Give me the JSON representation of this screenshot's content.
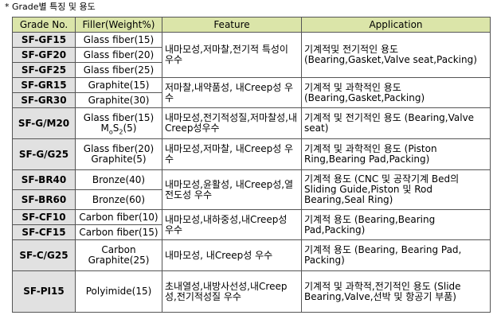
{
  "caption": "* Grade별 특징 및 용도",
  "headers": [
    "Grade No.",
    "Filler(Weight%)",
    "Feature",
    "Application"
  ],
  "groups": [
    {
      "grades": [
        "SF-GF15",
        "SF-GF20",
        "SF-GF25"
      ],
      "fillers": [
        "Glass fiber(15)",
        "Glass fiber(20)",
        "Glass fiber(25)"
      ],
      "feature": "내마모성,저마찰,전기적 특성이 우수",
      "application": "기계적및 전기적인 용도 (Bearing,Gasket,Valve seat,Packing)"
    },
    {
      "grades": [
        "SF-GR15",
        "SF-GR30"
      ],
      "fillers": [
        "Graphite(15)",
        "Graphite(30)"
      ],
      "feature": "저마찰,내약품성, 내Creep성 우수",
      "application": "기계적 및 과학적인 용도 (Bearing,Gasket,Packing)"
    },
    {
      "grade": "SF-G/M20",
      "filler_line1": "Glass fiber(15)",
      "filler_line2_main": "M",
      "filler_line2_sub1": "o",
      "filler_line2_mid": "S",
      "filler_line2_sub2": "2",
      "filler_line2_end": "(5)",
      "feature": "내마모성,전기적성질,저마찰성,내Creep성우수",
      "application": "기계적 및 전기적인 용도 (Bearing,Valve seat)"
    },
    {
      "grade": "SF-G/G25",
      "filler_line1": "Glass fiber(20)",
      "filler_line2": "Graphite(5)",
      "feature": "내마모성,저마찰, 내Creep성 우수",
      "application": "기계적 및 과학적인 용도 (Piston Ring,Bearing Pad,Packing)"
    },
    {
      "grades": [
        "SF-BR40",
        "SF-BR60"
      ],
      "fillers": [
        "Bronze(40)",
        "Bronze(60)"
      ],
      "feature": "내마모성,윤활성, 내Creep성,열전도성 우수",
      "application": "기계적 용도 (CNC 및 공작기계 Bed의 Sliding Guide,Piston 및 Rod Bearing,Seal Ring)"
    },
    {
      "grades": [
        "SF-CF10",
        "SF-CF15"
      ],
      "fillers": [
        "Carbon fiber(10)",
        "Carbon fiber(15)"
      ],
      "feature": "내마모성,내하중성,내Creep성 우수",
      "application": "기계적 용도 (Bearing,Bearing Pad,Packing)"
    },
    {
      "grade": "SF-C/G25",
      "filler_line1": "Carbon",
      "filler_line2": "Graphite(25)",
      "feature": "내마모성, 내Creep성 우수",
      "application": "기계적 용도 (Bearing, Bearing Pad, Packing)"
    },
    {
      "grade": "SF-PI15",
      "filler": "Polyimide(15)",
      "feature": "초내열성,내방사선성,내Creep성,전기적성질 우수",
      "application": "기계적 및 과학적,전기적인 용도 (Slide Bearing,Valve,선박 및 항공기 부품)"
    }
  ]
}
